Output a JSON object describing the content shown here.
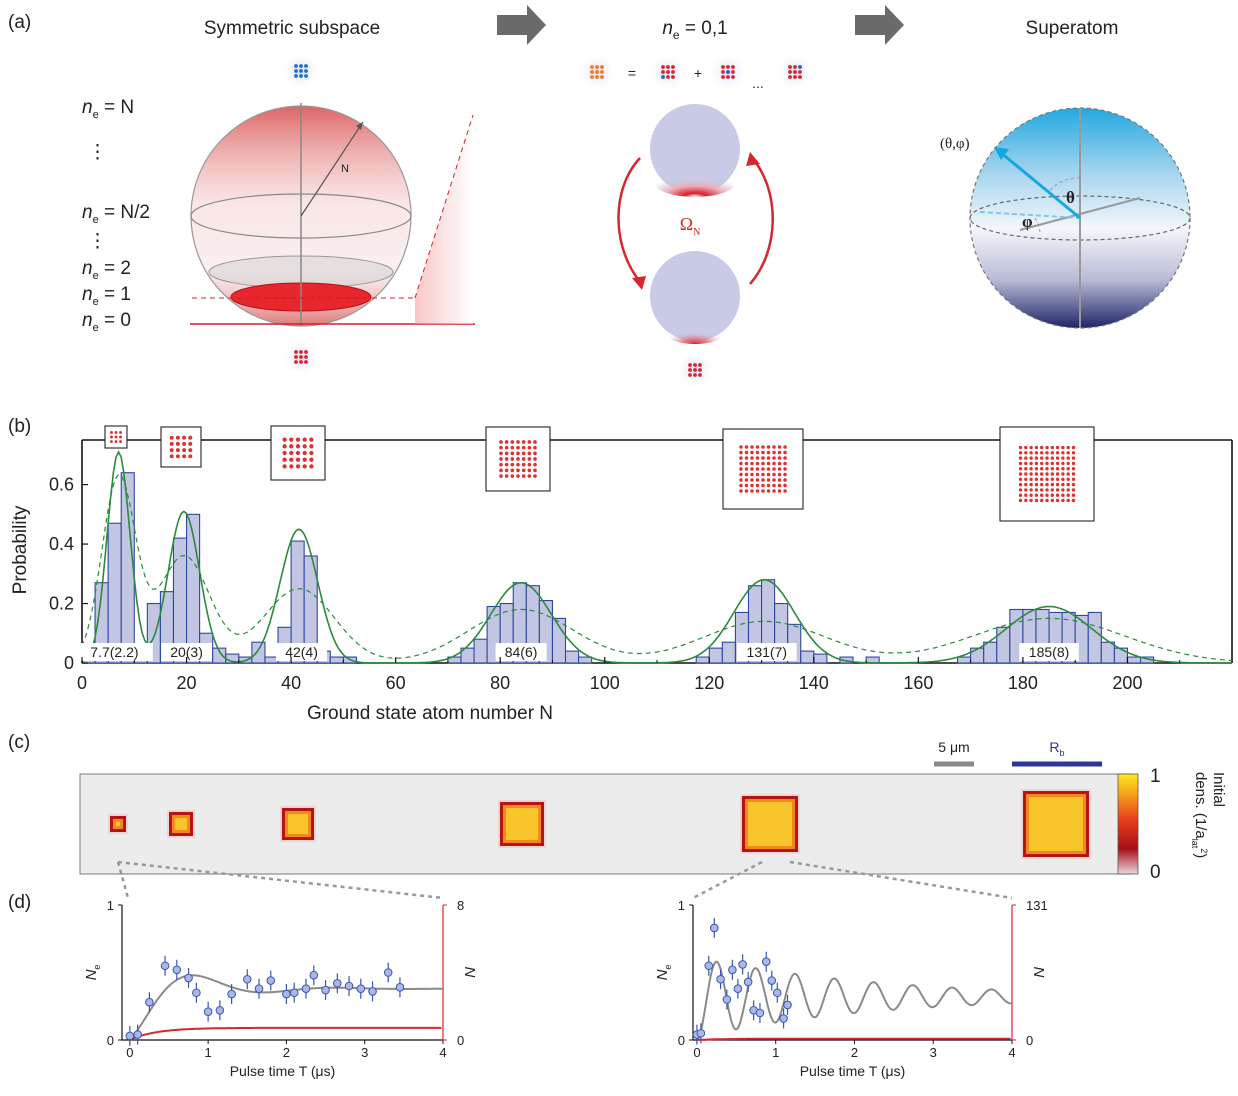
{
  "panel_a": {
    "label": "(a)",
    "left_title": "Symmetric subspace",
    "mid_title_n": "n",
    "mid_title_sub": "e",
    "mid_title_rest": " = 0,1",
    "right_title": "Superatom",
    "levels": [
      {
        "n": "n",
        "sub": "e",
        "rest": " = N"
      },
      {
        "n": "n",
        "sub": "e",
        "rest": " = N/2"
      },
      {
        "n": "n",
        "sub": "e",
        "rest": " = 2"
      },
      {
        "n": "n",
        "sub": "e",
        "rest": " = 1"
      },
      {
        "n": "n",
        "sub": "e",
        "rest": " = 0"
      }
    ],
    "radius_label": "N",
    "eq_sign": "=",
    "plus_sign": "+",
    "ellipsis": "...",
    "rabi": "Ω",
    "rabi_sub": "N",
    "angles_label": "(θ,φ)",
    "theta": "θ",
    "phi": "φ"
  },
  "panel_b": {
    "label": "(b)",
    "chart_data": {
      "type": "bar",
      "xlabel": "Ground state atom number N",
      "ylabel": "Probability",
      "xlim": [
        0,
        220
      ],
      "ylim": [
        0,
        0.75
      ],
      "xticks": [
        0,
        20,
        40,
        60,
        80,
        100,
        120,
        140,
        160,
        180,
        200
      ],
      "yticks": [
        0,
        0.2,
        0.4,
        0.6
      ],
      "groups": [
        {
          "label": "7.7(2.2)",
          "bins": [
            [
              0,
              0.05
            ],
            [
              2.5,
              0.27
            ],
            [
              5,
              0.47
            ],
            [
              7.5,
              0.64
            ],
            [
              10,
              0.05
            ],
            [
              12.5,
              0.02
            ]
          ]
        },
        {
          "label": "20(3)",
          "bins": [
            [
              12.5,
              0.2
            ],
            [
              15,
              0.24
            ],
            [
              17.5,
              0.42
            ],
            [
              20,
              0.5
            ],
            [
              22.5,
              0.1
            ],
            [
              25,
              0.05
            ],
            [
              27.5,
              0.03
            ],
            [
              30,
              0.02
            ]
          ]
        },
        {
          "label": "42(4)",
          "bins": [
            [
              32.5,
              0.07
            ],
            [
              35,
              0.02
            ],
            [
              37.5,
              0.12
            ],
            [
              40,
              0.41
            ],
            [
              42.5,
              0.36
            ],
            [
              45,
              0.04
            ],
            [
              47.5,
              0.02
            ],
            [
              50,
              0.02
            ]
          ]
        },
        {
          "label": "84(6)",
          "bins": [
            [
              70,
              0.02
            ],
            [
              72.5,
              0.05
            ],
            [
              75,
              0.08
            ],
            [
              77.5,
              0.19
            ],
            [
              80,
              0.2
            ],
            [
              82.5,
              0.27
            ],
            [
              85,
              0.26
            ],
            [
              87.5,
              0.21
            ],
            [
              90,
              0.15
            ],
            [
              92.5,
              0.04
            ],
            [
              95,
              0.02
            ]
          ]
        },
        {
          "label": "131(7)",
          "bins": [
            [
              117.5,
              0.02
            ],
            [
              120,
              0.05
            ],
            [
              122.5,
              0.07
            ],
            [
              125,
              0.17
            ],
            [
              127.5,
              0.26
            ],
            [
              130,
              0.28
            ],
            [
              132.5,
              0.2
            ],
            [
              135,
              0.13
            ],
            [
              137.5,
              0.04
            ],
            [
              140,
              0.03
            ],
            [
              145,
              0.02
            ],
            [
              150,
              0.02
            ]
          ]
        },
        {
          "label": "185(8)",
          "bins": [
            [
              167.5,
              0.02
            ],
            [
              170,
              0.05
            ],
            [
              172.5,
              0.07
            ],
            [
              175,
              0.12
            ],
            [
              177.5,
              0.18
            ],
            [
              180,
              0.18
            ],
            [
              182.5,
              0.18
            ],
            [
              185,
              0.17
            ],
            [
              187.5,
              0.17
            ],
            [
              190,
              0.16
            ],
            [
              192.5,
              0.17
            ],
            [
              195,
              0.07
            ],
            [
              197.5,
              0.05
            ],
            [
              200,
              0.02
            ],
            [
              202.5,
              0.02
            ]
          ]
        }
      ],
      "fits": [
        {
          "mean": 7,
          "sigma": 2.2,
          "amp": 0.71,
          "dashed_sigma": 3.2,
          "dashed_amp": 0.62
        },
        {
          "mean": 19.5,
          "sigma": 3,
          "amp": 0.51,
          "dashed_sigma": 4.9,
          "dashed_amp": 0.36
        },
        {
          "mean": 41.5,
          "sigma": 3.6,
          "amp": 0.45,
          "dashed_sigma": 6.8,
          "dashed_amp": 0.25
        },
        {
          "mean": 84,
          "sigma": 5.8,
          "amp": 0.27,
          "dashed_sigma": 10,
          "dashed_amp": 0.18
        },
        {
          "mean": 130.5,
          "sigma": 5.8,
          "amp": 0.28,
          "dashed_sigma": 11.8,
          "dashed_amp": 0.14
        },
        {
          "mean": 185,
          "sigma": 8.2,
          "amp": 0.19,
          "dashed_sigma": 14.5,
          "dashed_amp": 0.15
        }
      ],
      "colors": {
        "bar_fill": "#c3c6e3",
        "bar_edge": "#2e47a0",
        "fit": "#2c8a3c",
        "dot": "#e03030"
      }
    }
  },
  "panel_c": {
    "label": "(c)",
    "scale_bar_label": "5 μm",
    "rb_label": "R",
    "rb_sub": "b",
    "colorbar_title": "Initial",
    "colorbar_unit": "dens. (1/a",
    "colorbar_unit_sub": "lat",
    "colorbar_unit_sup": "2",
    "colorbar_unit_end": ")",
    "colorbar_max": "1",
    "colorbar_min": "0"
  },
  "panel_d": {
    "label": "(d)",
    "chart_data": [
      {
        "type": "scatter",
        "xlabel": "Pulse time T (μs)",
        "ylabel": "N",
        "ylabel_sub": "e",
        "right_label": "N",
        "xlim": [
          -0.1,
          4
        ],
        "xticks": [
          0,
          1,
          2,
          3,
          4
        ],
        "left_ticks": [
          "0",
          "1"
        ],
        "right_ticks": [
          "0",
          "8"
        ],
        "points": [
          [
            0,
            0.03
          ],
          [
            0.1,
            0.04
          ],
          [
            0.25,
            0.28
          ],
          [
            0.45,
            0.55
          ],
          [
            0.6,
            0.52
          ],
          [
            0.75,
            0.46
          ],
          [
            0.85,
            0.35
          ],
          [
            1.0,
            0.21
          ],
          [
            1.15,
            0.22
          ],
          [
            1.3,
            0.34
          ],
          [
            1.5,
            0.45
          ],
          [
            1.65,
            0.38
          ],
          [
            1.8,
            0.44
          ],
          [
            2.0,
            0.34
          ],
          [
            2.1,
            0.35
          ],
          [
            2.25,
            0.38
          ],
          [
            2.35,
            0.48
          ],
          [
            2.5,
            0.37
          ],
          [
            2.65,
            0.42
          ],
          [
            2.8,
            0.4
          ],
          [
            2.95,
            0.38
          ],
          [
            3.1,
            0.36
          ],
          [
            3.3,
            0.5
          ],
          [
            3.45,
            0.39
          ]
        ],
        "series_grey": {
          "c": 0.38,
          "a": 0.34,
          "w": 3.45,
          "tau": 0.7
        },
        "series_red": {
          "level": 0.09
        }
      },
      {
        "type": "scatter",
        "xlabel": "Pulse time T (μs)",
        "ylabel": "N",
        "ylabel_sub": "e",
        "right_label": "N",
        "xlim": [
          -0.05,
          4
        ],
        "xticks": [
          0,
          1,
          2,
          3,
          4
        ],
        "left_ticks": [
          "0",
          "1"
        ],
        "right_ticks": [
          "0",
          "131"
        ],
        "points": [
          [
            0.0,
            0.04
          ],
          [
            0.05,
            0.05
          ],
          [
            0.15,
            0.55
          ],
          [
            0.22,
            0.83
          ],
          [
            0.3,
            0.45
          ],
          [
            0.38,
            0.3
          ],
          [
            0.45,
            0.52
          ],
          [
            0.52,
            0.38
          ],
          [
            0.58,
            0.56
          ],
          [
            0.65,
            0.43
          ],
          [
            0.72,
            0.22
          ],
          [
            0.8,
            0.2
          ],
          [
            0.88,
            0.58
          ],
          [
            0.95,
            0.44
          ],
          [
            1.02,
            0.35
          ],
          [
            1.1,
            0.16
          ],
          [
            1.15,
            0.26
          ]
        ],
        "series_grey": {
          "c": 0.32,
          "a": 0.3,
          "w": 12.6,
          "tau": 2.2
        },
        "series_red": {
          "level": 0.01
        }
      }
    ]
  }
}
